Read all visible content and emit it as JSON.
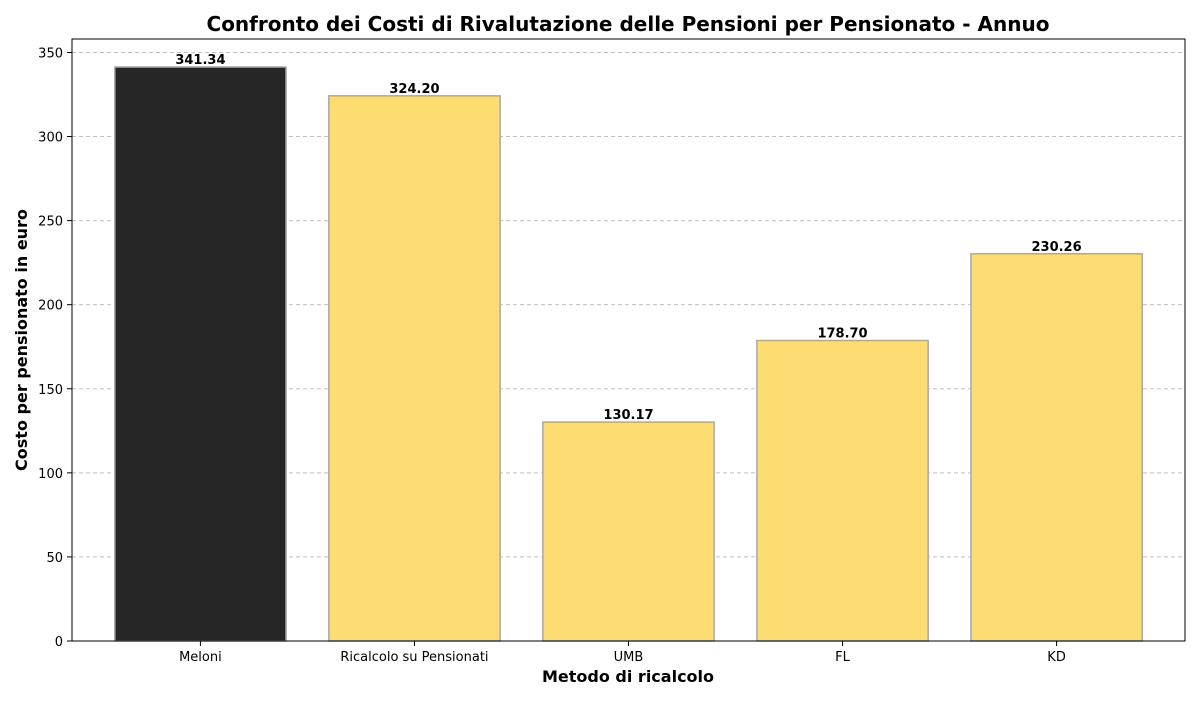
{
  "chart_data": {
    "type": "bar",
    "title": "Confronto dei Costi di Rivalutazione delle Pensioni per Pensionato - Annuo",
    "xlabel": "Metodo di ricalcolo",
    "ylabel": "Costo per pensionato in euro",
    "categories": [
      "Meloni",
      "Ricalcolo su Pensionati",
      "UMB",
      "FL",
      "KD"
    ],
    "values": [
      341.34,
      324.2,
      130.17,
      178.7,
      230.26
    ],
    "value_labels": [
      "341.34",
      "324.20",
      "130.17",
      "178.70",
      "230.26"
    ],
    "bar_colors": [
      "#262626",
      "#fddd72",
      "#fddd72",
      "#fddd72",
      "#fddd72"
    ],
    "bar_edge_color": "#a8a8a8",
    "ylim": [
      0,
      358
    ],
    "yticks": [
      0,
      50,
      100,
      150,
      200,
      250,
      300,
      350
    ],
    "grid": "y-dashed",
    "legend": "none"
  }
}
